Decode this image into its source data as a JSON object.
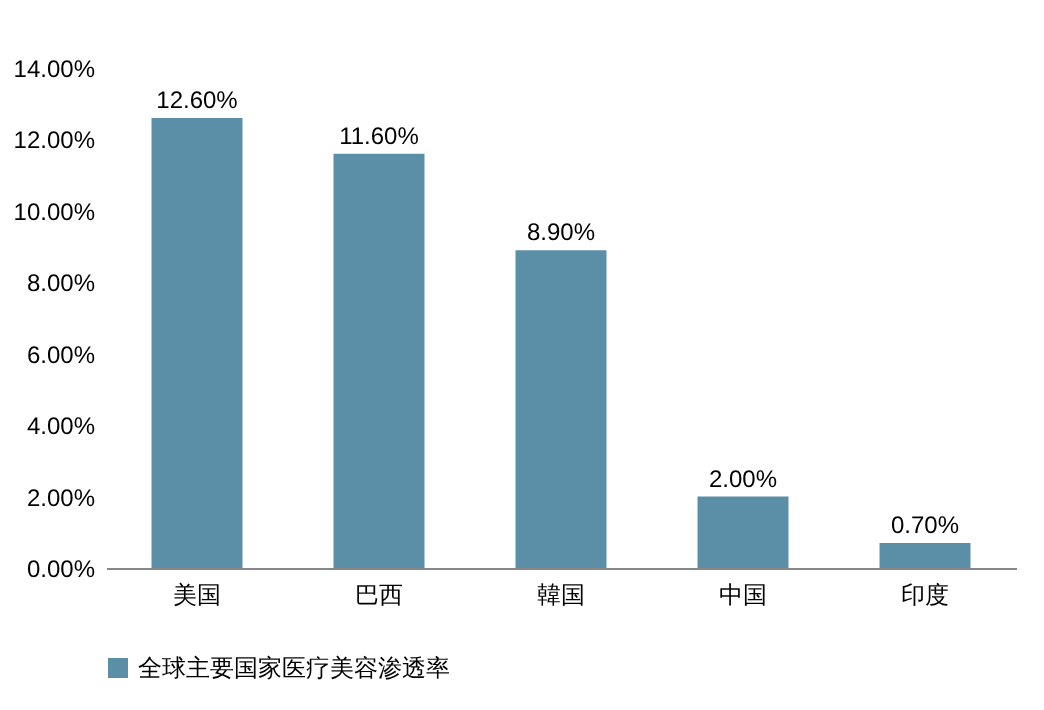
{
  "chart_data": {
    "type": "bar",
    "categories": [
      "美国",
      "巴西",
      "韓国",
      "中国",
      "印度"
    ],
    "series": [
      {
        "name": "全球主要国家医疗美容渗透率",
        "color": "#5b8fa8",
        "values": [
          12.6,
          11.6,
          8.9,
          2.0,
          0.7
        ]
      }
    ],
    "value_labels": [
      "12.60%",
      "11.60%",
      "8.90%",
      "2.00%",
      "0.70%"
    ],
    "ylim": [
      0,
      14
    ],
    "yticks": [
      {
        "value": 0,
        "label": "0.00%"
      },
      {
        "value": 2,
        "label": "2.00%"
      },
      {
        "value": 4,
        "label": "4.00%"
      },
      {
        "value": 6,
        "label": "6.00%"
      },
      {
        "value": 8,
        "label": "8.00%"
      },
      {
        "value": 10,
        "label": "10.00%"
      },
      {
        "value": 12,
        "label": "12.00%"
      },
      {
        "value": 14,
        "label": "14.00%"
      }
    ],
    "legend": "bottom"
  }
}
